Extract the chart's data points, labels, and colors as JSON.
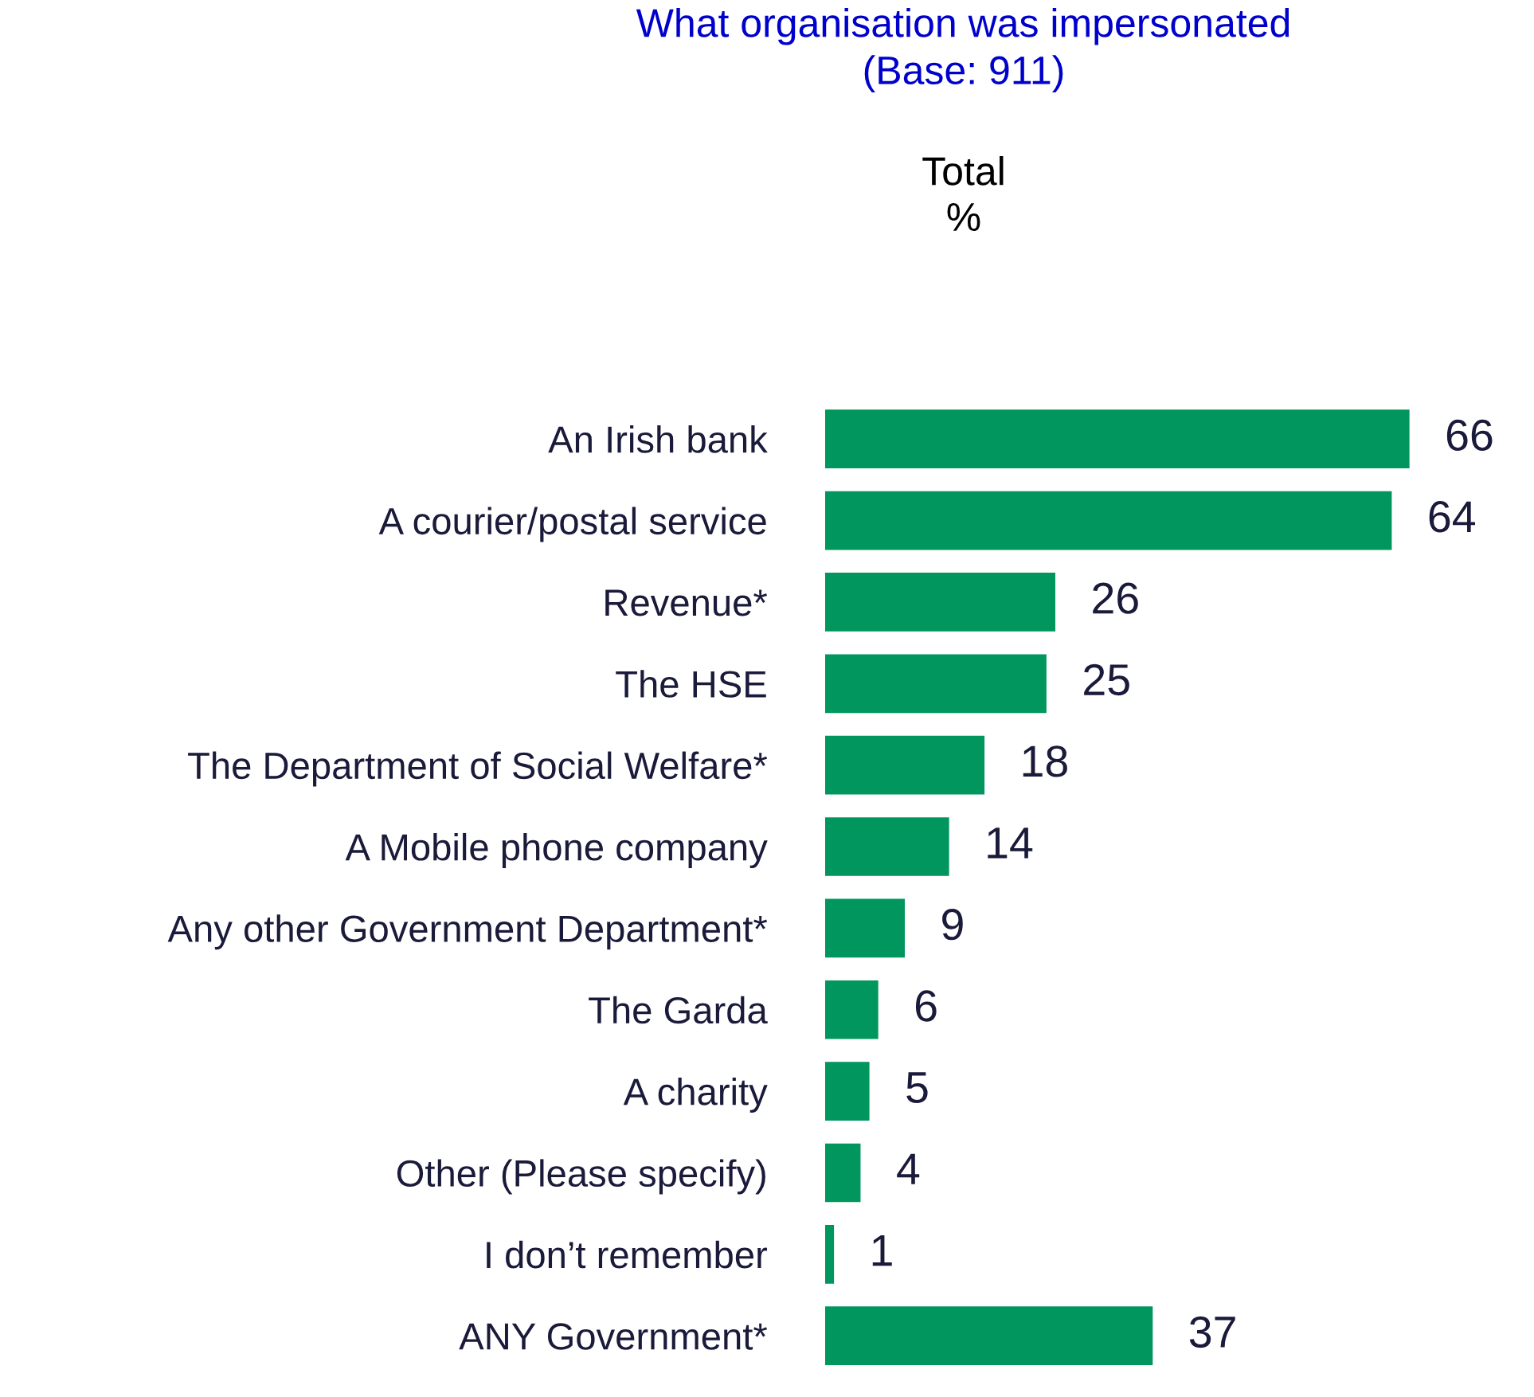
{
  "chart_data": {
    "type": "bar",
    "orientation": "horizontal",
    "title": "What organisation was impersonated\n(Base: 911)",
    "subtitle": "Total\n%",
    "categories": [
      "An Irish bank",
      "A courier/postal service",
      "Revenue*",
      "The HSE",
      "The Department of Social Welfare*",
      "A Mobile phone company",
      "Any other Government Department*",
      "The Garda",
      "A charity",
      "Other (Please specify)",
      "I don’t remember",
      "ANY Government*"
    ],
    "values": [
      66,
      64,
      26,
      25,
      18,
      14,
      9,
      6,
      5,
      4,
      1,
      37
    ],
    "color": "#00965e",
    "data_labels": true,
    "grid": false,
    "legend": false
  }
}
